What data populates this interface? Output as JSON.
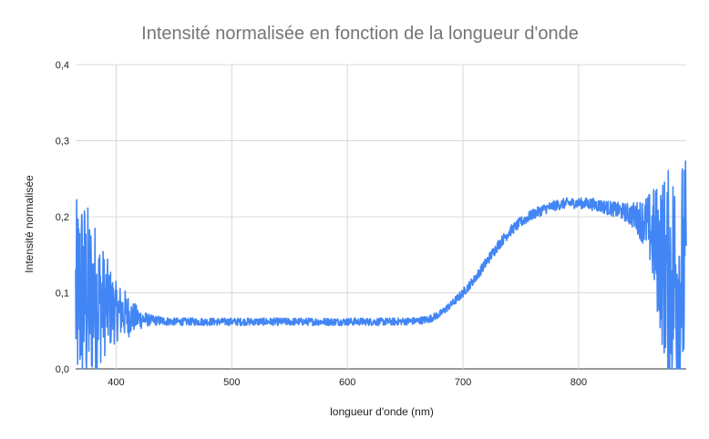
{
  "chart_data": {
    "type": "line",
    "title": "Intensité normalisée en fonction de la longueur d'onde",
    "xlabel": "longueur d'onde (nm)",
    "ylabel": "Intensité normalisée",
    "xlim": [
      365,
      893
    ],
    "ylim": [
      0,
      0.4
    ],
    "x_ticks": [
      400,
      500,
      600,
      700,
      800
    ],
    "x_tick_labels": [
      "400",
      "500",
      "600",
      "700",
      "800"
    ],
    "y_ticks": [
      0,
      0.1,
      0.2,
      0.3,
      0.4
    ],
    "y_tick_labels": [
      "0,0",
      "0,1",
      "0,2",
      "0,3",
      "0,4"
    ],
    "grid": true,
    "legend": "none",
    "series_color": "#4285F4",
    "series": [
      {
        "x": [
          365,
          370,
          375,
          380,
          385,
          390,
          395,
          400,
          405,
          410,
          415,
          420,
          425,
          430,
          440,
          450,
          460,
          480,
          500,
          520,
          540,
          560,
          580,
          600,
          620,
          640,
          660,
          670,
          680,
          690,
          700,
          710,
          720,
          730,
          740,
          750,
          760,
          770,
          780,
          790,
          800,
          810,
          820,
          830,
          840,
          850,
          860,
          865,
          870,
          875,
          880,
          885,
          890,
          893
        ],
        "values": [
          0.09,
          0.1,
          0.09,
          0.095,
          0.09,
          0.085,
          0.08,
          0.075,
          0.075,
          0.07,
          0.068,
          0.066,
          0.065,
          0.064,
          0.063,
          0.062,
          0.062,
          0.062,
          0.062,
          0.062,
          0.062,
          0.062,
          0.062,
          0.062,
          0.062,
          0.062,
          0.063,
          0.065,
          0.072,
          0.085,
          0.1,
          0.118,
          0.14,
          0.162,
          0.18,
          0.193,
          0.203,
          0.21,
          0.215,
          0.218,
          0.218,
          0.217,
          0.214,
          0.21,
          0.206,
          0.2,
          0.19,
          0.17,
          0.15,
          0.13,
          0.12,
          0.12,
          0.12,
          0.12
        ],
        "noise_amplitude": [
          0.13,
          0.14,
          0.13,
          0.11,
          0.09,
          0.07,
          0.055,
          0.04,
          0.035,
          0.03,
          0.02,
          0.015,
          0.01,
          0.007,
          0.006,
          0.005,
          0.005,
          0.005,
          0.005,
          0.005,
          0.005,
          0.005,
          0.005,
          0.005,
          0.005,
          0.005,
          0.005,
          0.005,
          0.005,
          0.005,
          0.006,
          0.006,
          0.007,
          0.007,
          0.007,
          0.007,
          0.007,
          0.007,
          0.007,
          0.007,
          0.007,
          0.008,
          0.009,
          0.01,
          0.012,
          0.02,
          0.04,
          0.07,
          0.1,
          0.13,
          0.15,
          0.16,
          0.16,
          0.16
        ]
      }
    ]
  }
}
